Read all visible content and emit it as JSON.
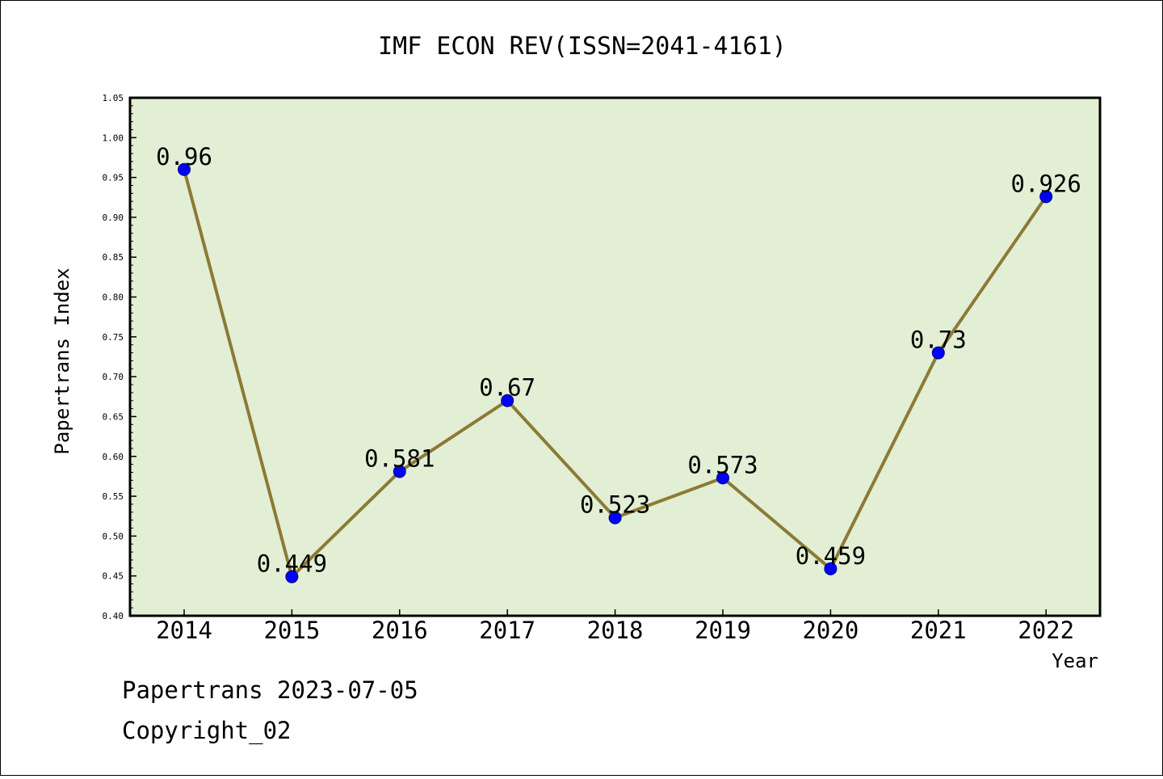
{
  "chart_data": {
    "type": "line",
    "title": "IMF ECON REV(ISSN=2041-4161)",
    "xlabel": "Year",
    "ylabel": "Papertrans Index",
    "categories": [
      "2014",
      "2015",
      "2016",
      "2017",
      "2018",
      "2019",
      "2020",
      "2021",
      "2022"
    ],
    "values": [
      0.96,
      0.449,
      0.581,
      0.67,
      0.523,
      0.573,
      0.459,
      0.73,
      0.926
    ],
    "data_labels": [
      "0.96",
      "0.449",
      "0.581",
      "0.67",
      "0.523",
      "0.573",
      "0.459",
      "0.73",
      "0.926"
    ],
    "ylim": [
      0.4,
      1.05
    ],
    "yticks": [
      "0.40",
      "0.45",
      "0.50",
      "0.55",
      "0.60",
      "0.65",
      "0.70",
      "0.75",
      "0.80",
      "0.85",
      "0.90",
      "0.95",
      "1.00",
      "1.05"
    ],
    "grid": false,
    "colors": {
      "plot_background": "#e2efd5",
      "line": "#8c7a35",
      "marker": "#0000ff"
    }
  },
  "footer": {
    "date_text": "Papertrans 2023-07-05",
    "copyright_text": "Copyright_02"
  }
}
